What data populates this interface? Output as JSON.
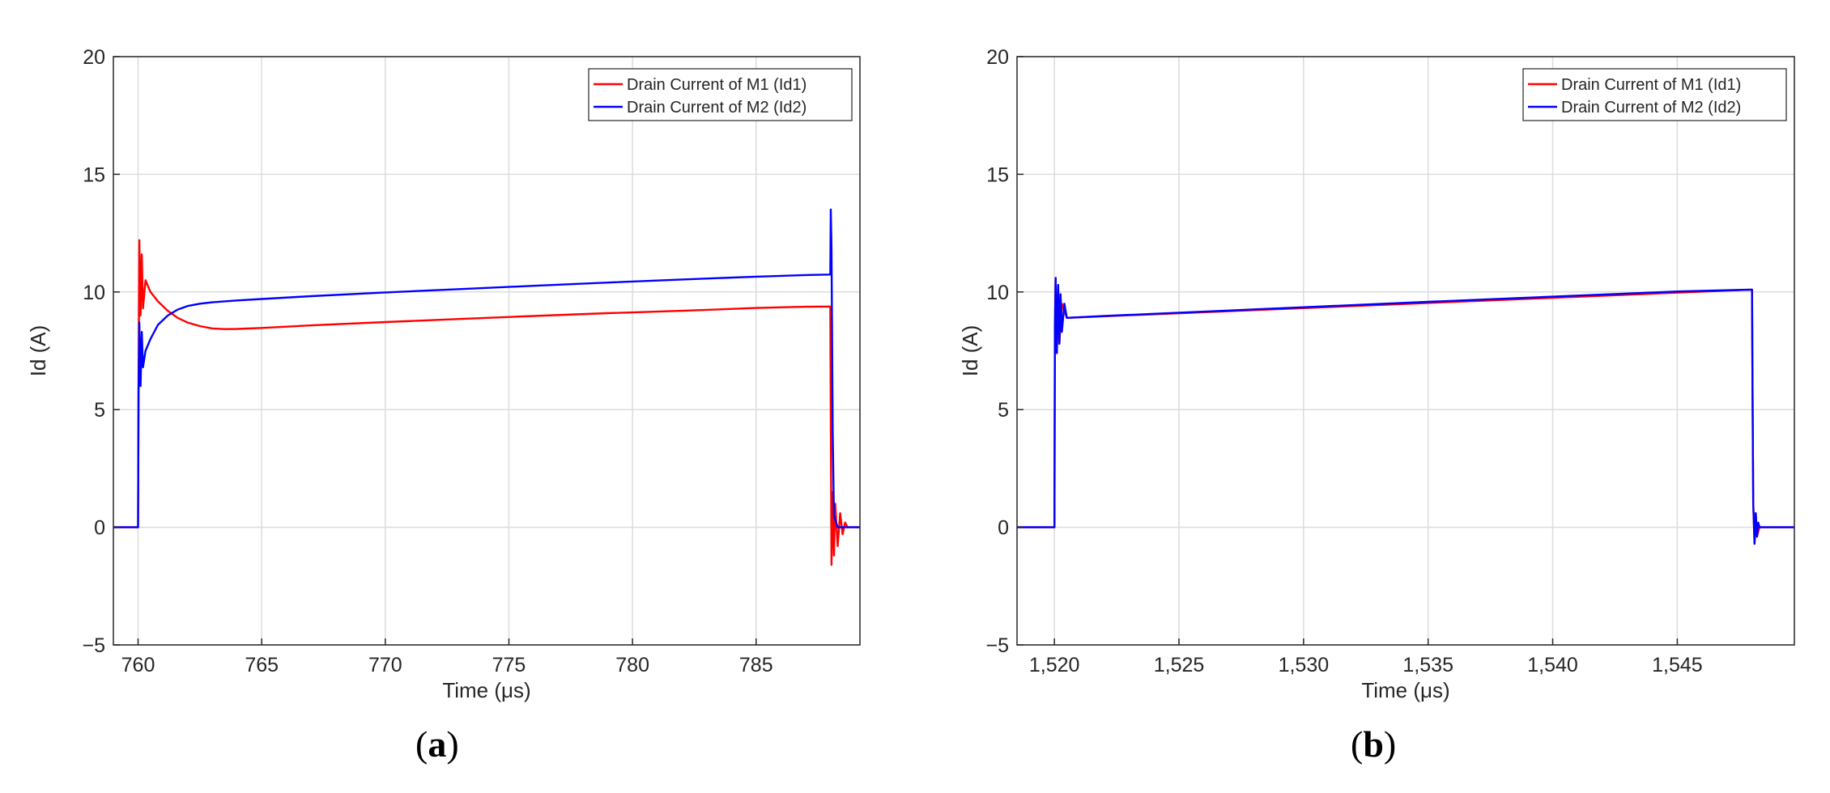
{
  "chart_data": [
    {
      "type": "line",
      "panel_label": "a",
      "xlabel": "Time (μs)",
      "ylabel": "Id (A)",
      "xlim": [
        759,
        789.2
      ],
      "ylim": [
        -5,
        20
      ],
      "xticks": [
        760,
        765,
        770,
        775,
        780,
        785
      ],
      "xtick_labels": [
        "760",
        "765",
        "770",
        "775",
        "780",
        "785"
      ],
      "yticks": [
        -5,
        0,
        5,
        10,
        15,
        20
      ],
      "ytick_labels": [
        "−5",
        "0",
        "5",
        "10",
        "15",
        "20"
      ],
      "grid": true,
      "legend_position": "top-right",
      "series": [
        {
          "name": "Drain Current of M1 (Id1)",
          "color": "#ff0000",
          "x": [
            759,
            760.0,
            760.02,
            760.05,
            760.1,
            760.15,
            760.2,
            760.3,
            760.5,
            760.8,
            761.2,
            761.6,
            762.0,
            762.5,
            763.0,
            763.5,
            764.0,
            765.0,
            767.0,
            770.0,
            773.0,
            776.0,
            779.0,
            782.0,
            785.0,
            787.0,
            788.0,
            788.02,
            788.05,
            788.1,
            788.15,
            788.2,
            788.3,
            788.4,
            788.5,
            788.6,
            788.7,
            789.2
          ],
          "y": [
            0,
            0,
            6,
            12.2,
            9.0,
            11.6,
            9.3,
            10.5,
            10.0,
            9.6,
            9.2,
            8.9,
            8.7,
            8.55,
            8.45,
            8.42,
            8.43,
            8.47,
            8.58,
            8.72,
            8.85,
            8.98,
            9.1,
            9.2,
            9.32,
            9.37,
            9.38,
            4.5,
            -1.6,
            1.5,
            -1.2,
            1.0,
            -0.8,
            0.6,
            -0.3,
            0.2,
            0,
            0
          ]
        },
        {
          "name": "Drain Current of M2 (Id2)",
          "color": "#0000ff",
          "x": [
            759,
            760.0,
            760.02,
            760.05,
            760.1,
            760.15,
            760.2,
            760.3,
            760.5,
            760.8,
            761.2,
            761.6,
            762.0,
            762.5,
            763.0,
            764.0,
            765.0,
            767.0,
            770.0,
            773.0,
            776.0,
            779.0,
            782.0,
            785.0,
            787.0,
            788.0,
            788.02,
            788.05,
            788.08,
            788.1,
            788.15,
            788.3,
            789.2
          ],
          "y": [
            0,
            0,
            5.8,
            8.7,
            6.0,
            8.3,
            6.8,
            7.5,
            8.0,
            8.6,
            9.0,
            9.25,
            9.4,
            9.5,
            9.56,
            9.64,
            9.7,
            9.82,
            9.98,
            10.12,
            10.26,
            10.4,
            10.53,
            10.65,
            10.72,
            10.74,
            13.5,
            11.8,
            7.0,
            4.0,
            0.5,
            0,
            0
          ]
        }
      ]
    },
    {
      "type": "line",
      "panel_label": "b",
      "xlabel": "Time (μs)",
      "ylabel": "Id (A)",
      "xlim": [
        1518.5,
        1549.7
      ],
      "ylim": [
        -5,
        20
      ],
      "xticks": [
        1520,
        1525,
        1530,
        1535,
        1540,
        1545
      ],
      "xtick_labels": [
        "1,520",
        "1,525",
        "1,530",
        "1,535",
        "1,540",
        "1,545"
      ],
      "yticks": [
        -5,
        0,
        5,
        10,
        15,
        20
      ],
      "ytick_labels": [
        "−5",
        "0",
        "5",
        "10",
        "15",
        "20"
      ],
      "grid": true,
      "legend_position": "top-right",
      "series": [
        {
          "name": "Drain Current of M1 (Id1)",
          "color": "#ff0000",
          "x": [
            1518.5,
            1520.0,
            1520.02,
            1520.05,
            1520.1,
            1520.15,
            1520.2,
            1520.3,
            1520.5,
            1548.0,
            1548.02,
            1548.05,
            1548.1,
            1548.15,
            1548.2,
            1548.3,
            1549.7
          ],
          "y": [
            0,
            0,
            8.5,
            10.6,
            7.4,
            10.2,
            7.8,
            9.5,
            8.9,
            10.1,
            6.0,
            1.0,
            -0.7,
            0.6,
            -0.4,
            0,
            0
          ]
        },
        {
          "name": "Drain Current of M2 (Id2)",
          "color": "#0000ff",
          "x": [
            1518.5,
            1520.0,
            1520.02,
            1520.05,
            1520.1,
            1520.15,
            1520.2,
            1520.25,
            1520.3,
            1520.4,
            1520.5,
            1522.0,
            1525.0,
            1530.0,
            1535.0,
            1540.0,
            1545.0,
            1548.0,
            1548.02,
            1548.05,
            1548.1,
            1548.15,
            1548.2,
            1548.25,
            1548.3,
            1549.7
          ],
          "y": [
            0,
            0,
            8.5,
            10.6,
            7.4,
            10.3,
            7.8,
            9.9,
            8.3,
            9.5,
            8.9,
            8.98,
            9.12,
            9.35,
            9.58,
            9.8,
            10.02,
            10.1,
            6.0,
            1.0,
            -0.7,
            0.6,
            -0.4,
            0.2,
            0,
            0
          ]
        }
      ]
    }
  ]
}
